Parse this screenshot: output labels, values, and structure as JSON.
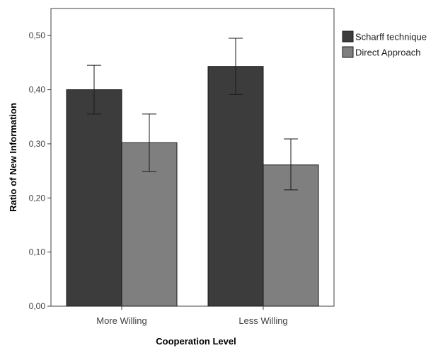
{
  "chart_data": {
    "type": "bar",
    "categories": [
      "More Willing",
      "Less Willing"
    ],
    "series": [
      {
        "name": "Scharff technique",
        "color": "#3c3c3c",
        "values": [
          0.4,
          0.443
        ],
        "err_low": [
          0.355,
          0.391
        ],
        "err_high": [
          0.445,
          0.495
        ]
      },
      {
        "name": "Direct Approach",
        "color": "#7f7f7f",
        "values": [
          0.302,
          0.261
        ],
        "err_low": [
          0.249,
          0.215
        ],
        "err_high": [
          0.355,
          0.309
        ]
      }
    ],
    "xlabel": "Cooperation Level",
    "ylabel": "Ratio of New Information",
    "ylim": [
      0,
      0.55
    ],
    "yticks": [
      "0,00",
      "0,10",
      "0,20",
      "0,30",
      "0,40",
      "0,50"
    ],
    "ytick_values": [
      0,
      0.1,
      0.2,
      0.3,
      0.4,
      0.5
    ],
    "grid": false,
    "legend_position": "top-right"
  }
}
